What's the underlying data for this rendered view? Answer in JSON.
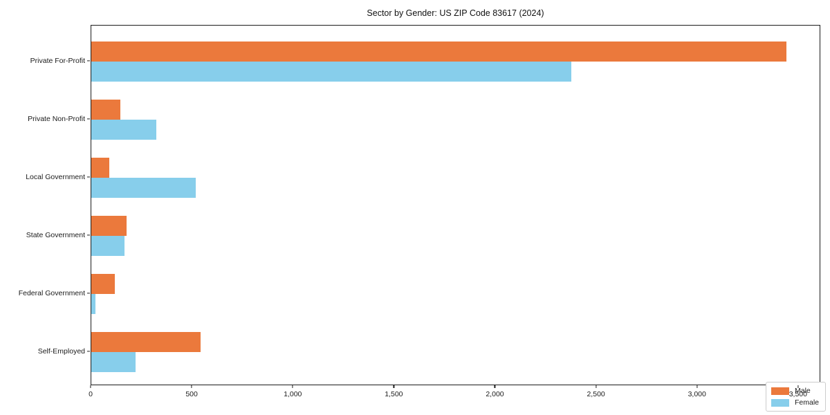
{
  "chart_data": {
    "type": "bar",
    "orientation": "horizontal",
    "title": "Sector by Gender: US ZIP Code 83617 (2024)",
    "categories": [
      "Private For-Profit",
      "Private Non-Profit",
      "Local Government",
      "State Government",
      "Federal Government",
      "Self-Employed"
    ],
    "series": [
      {
        "name": "Male",
        "color": "#EB793C",
        "values": [
          3440,
          145,
          90,
          175,
          115,
          540
        ]
      },
      {
        "name": "Female",
        "color": "#87CEEB",
        "values": [
          2375,
          320,
          515,
          165,
          20,
          220
        ]
      }
    ],
    "xlabel": "",
    "ylabel": "",
    "xlim": [
      0,
      3610
    ],
    "x_ticks": [
      0,
      500,
      1000,
      1500,
      2000,
      2500,
      3000,
      3500
    ],
    "x_tick_labels": [
      "0",
      "500",
      "1,000",
      "1,500",
      "2,000",
      "2,500",
      "3,000",
      "3,500"
    ],
    "legend": {
      "position": "lower right",
      "entries": [
        "Male",
        "Female"
      ]
    },
    "grid": false,
    "plot_border_color": "#1a1a1a",
    "background_color": "#ffffff"
  }
}
